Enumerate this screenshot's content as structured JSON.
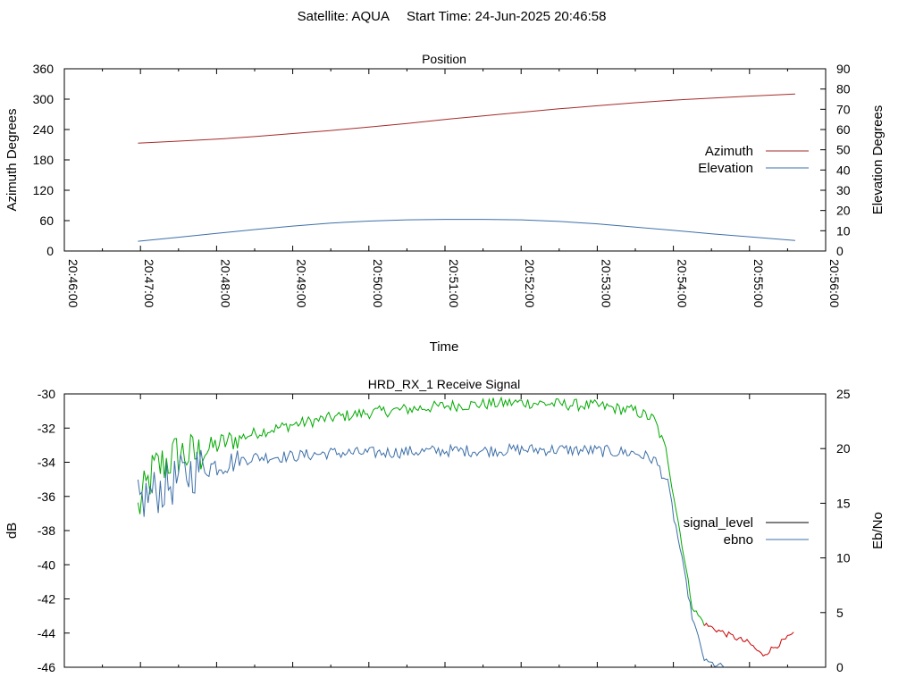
{
  "header": {
    "satellite_label": "Satellite: AQUA",
    "start_time_label": "Start Time: 24-Jun-2025 20:46:58"
  },
  "colors": {
    "azimuth": "#a52a2a",
    "elevation": "#3d6fa8",
    "signal_level": "#000000",
    "signal_level_good": "#00aa00",
    "signal_level_degraded": "#cc0000",
    "ebno": "#3d6fa8"
  },
  "chart_data": [
    {
      "type": "line",
      "title": "Position",
      "xlabel": "Time",
      "ylabel": "Azimuth Degrees",
      "y2label": "Elevation Degrees",
      "xlim": [
        "20:46:00",
        "20:56:00"
      ],
      "ylim": [
        0,
        360
      ],
      "y2lim": [
        0,
        90
      ],
      "x_ticks": [
        "20:46:00",
        "20:47:00",
        "20:48:00",
        "20:49:00",
        "20:50:00",
        "20:51:00",
        "20:52:00",
        "20:53:00",
        "20:54:00",
        "20:55:00",
        "20:56:00"
      ],
      "y_ticks": [
        "0",
        "60",
        "120",
        "180",
        "240",
        "300",
        "360"
      ],
      "y2_ticks": [
        "0",
        "10",
        "20",
        "30",
        "40",
        "50",
        "60",
        "70",
        "80",
        "90"
      ],
      "legend_position": "right",
      "grid": false,
      "x": [
        "20:46:58",
        "20:47:30",
        "20:48:00",
        "20:48:30",
        "20:49:00",
        "20:49:30",
        "20:50:00",
        "20:50:30",
        "20:51:00",
        "20:51:30",
        "20:52:00",
        "20:52:30",
        "20:53:00",
        "20:53:30",
        "20:54:00",
        "20:54:30",
        "20:55:00",
        "20:55:36"
      ],
      "series": [
        {
          "name": "Azimuth",
          "axis": "y",
          "values": [
            213,
            217,
            221,
            226,
            232,
            238,
            245,
            252,
            260,
            267,
            274,
            281,
            287,
            293,
            298,
            302,
            306,
            310
          ]
        },
        {
          "name": "Elevation",
          "axis": "y2",
          "values": [
            4.8,
            6.8,
            8.7,
            10.6,
            12.3,
            13.8,
            14.8,
            15.4,
            15.6,
            15.6,
            15.4,
            14.6,
            13.4,
            11.8,
            10.2,
            8.5,
            7.0,
            5.2
          ]
        }
      ]
    },
    {
      "type": "line",
      "title": "HRD_RX_1 Receive Signal",
      "xlabel": "",
      "ylabel": "dB",
      "y2label": "Eb/No",
      "xlim": [
        "20:46:00",
        "20:56:00"
      ],
      "ylim": [
        -46,
        -30
      ],
      "y2lim": [
        0,
        25
      ],
      "y_ticks": [
        "-30",
        "-32",
        "-34",
        "-36",
        "-38",
        "-40",
        "-42",
        "-44",
        "-46"
      ],
      "y2_ticks": [
        "0",
        "5",
        "10",
        "15",
        "20",
        "25"
      ],
      "legend_position": "right",
      "grid": false,
      "x": [
        "20:46:58",
        "20:47:10",
        "20:47:20",
        "20:47:30",
        "20:47:45",
        "20:48:00",
        "20:48:30",
        "20:49:00",
        "20:49:30",
        "20:50:00",
        "20:50:30",
        "20:51:00",
        "20:51:30",
        "20:52:00",
        "20:52:30",
        "20:53:00",
        "20:53:30",
        "20:53:45",
        "20:53:55",
        "20:54:05",
        "20:54:15",
        "20:54:25",
        "20:54:40",
        "20:55:00",
        "20:55:10",
        "20:55:20",
        "20:55:36"
      ],
      "series": [
        {
          "name": "signal_level",
          "axis": "y",
          "values": [
            -36.8,
            -34.5,
            -34.0,
            -33.5,
            -33.6,
            -33.0,
            -32.3,
            -31.8,
            -31.4,
            -31.1,
            -30.9,
            -30.7,
            -30.6,
            -30.5,
            -30.6,
            -30.7,
            -31.0,
            -31.5,
            -33.5,
            -38.0,
            -42.5,
            -43.5,
            -44.0,
            -44.6,
            -45.3,
            -44.8,
            -44.0
          ]
        },
        {
          "name": "ebno",
          "axis": "y2",
          "values": [
            15.0,
            16.0,
            16.5,
            17.2,
            18.2,
            18.5,
            19.2,
            19.3,
            19.6,
            19.6,
            19.7,
            19.8,
            19.8,
            19.9,
            19.9,
            19.8,
            19.6,
            19.0,
            17.0,
            11.0,
            4.5,
            0.5,
            0.0,
            0.0,
            0.0,
            0.0,
            0.0
          ]
        }
      ]
    }
  ]
}
